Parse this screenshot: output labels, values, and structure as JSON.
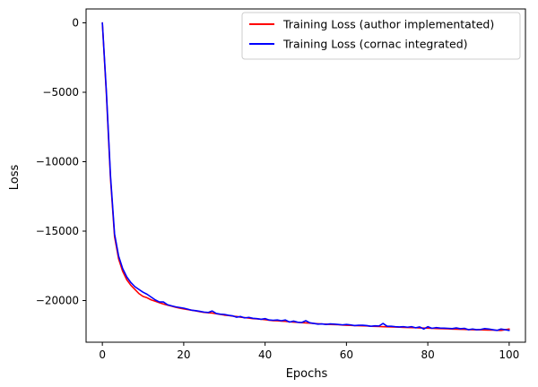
{
  "chart_data": {
    "type": "line",
    "title": "",
    "xlabel": "Epochs",
    "ylabel": "Loss",
    "xlim": [
      -4,
      104
    ],
    "ylim": [
      -23000,
      1000
    ],
    "xticks": [
      0,
      20,
      40,
      60,
      80,
      100
    ],
    "xtick_labels": [
      "0",
      "20",
      "40",
      "60",
      "80",
      "100"
    ],
    "yticks": [
      0,
      -5000,
      -10000,
      -15000,
      -20000
    ],
    "ytick_labels": [
      "0",
      "−5000",
      "−10000",
      "−15000",
      "−20000"
    ],
    "grid": false,
    "legend_position": "top-right",
    "x": [
      0,
      1,
      2,
      3,
      4,
      5,
      6,
      7,
      8,
      9,
      10,
      11,
      12,
      13,
      14,
      15,
      16,
      17,
      18,
      19,
      20,
      21,
      22,
      23,
      24,
      25,
      26,
      27,
      28,
      29,
      30,
      31,
      32,
      33,
      34,
      35,
      36,
      37,
      38,
      39,
      40,
      41,
      42,
      43,
      44,
      45,
      46,
      47,
      48,
      49,
      50,
      51,
      52,
      53,
      54,
      55,
      56,
      57,
      58,
      59,
      60,
      61,
      62,
      63,
      64,
      65,
      66,
      67,
      68,
      69,
      70,
      71,
      72,
      73,
      74,
      75,
      76,
      77,
      78,
      79,
      80,
      81,
      82,
      83,
      84,
      85,
      86,
      87,
      88,
      89,
      90,
      91,
      92,
      93,
      94,
      95,
      96,
      97,
      98,
      99,
      100
    ],
    "series": [
      {
        "name": "Training Loss (author implementated)",
        "color": "#ff0000",
        "values": [
          0,
          -5200,
          -11200,
          -15400,
          -17000,
          -17900,
          -18500,
          -18900,
          -19200,
          -19500,
          -19700,
          -19800,
          -19950,
          -20050,
          -20150,
          -20250,
          -20330,
          -20400,
          -20480,
          -20550,
          -20600,
          -20650,
          -20700,
          -20750,
          -20800,
          -20850,
          -20880,
          -20900,
          -20950,
          -21000,
          -21050,
          -21080,
          -21120,
          -21150,
          -21200,
          -21230,
          -21260,
          -21300,
          -21320,
          -21340,
          -21380,
          -21420,
          -21450,
          -21460,
          -21480,
          -21500,
          -21530,
          -21550,
          -21570,
          -21590,
          -21610,
          -21630,
          -21650,
          -21670,
          -21690,
          -21700,
          -21720,
          -21730,
          -21740,
          -21760,
          -21780,
          -21790,
          -21800,
          -21810,
          -21820,
          -21830,
          -21850,
          -21860,
          -21870,
          -21880,
          -21890,
          -21900,
          -21910,
          -21920,
          -21930,
          -21940,
          -21950,
          -21960,
          -21970,
          -21980,
          -21990,
          -22000,
          -22010,
          -22020,
          -22030,
          -22040,
          -22050,
          -22060,
          -22070,
          -22080,
          -22090,
          -22100,
          -22110,
          -22110,
          -22120,
          -22130,
          -22130,
          -22140,
          -22150,
          -22100,
          -22050
        ]
      },
      {
        "name": "Training Loss (cornac integrated)",
        "color": "#0000ff",
        "values": [
          0,
          -5000,
          -11000,
          -15200,
          -16800,
          -17700,
          -18300,
          -18700,
          -19000,
          -19200,
          -19400,
          -19550,
          -19750,
          -19950,
          -20100,
          -20100,
          -20300,
          -20380,
          -20450,
          -20500,
          -20550,
          -20620,
          -20700,
          -20730,
          -20780,
          -20830,
          -20860,
          -20750,
          -20930,
          -20980,
          -21000,
          -21060,
          -21100,
          -21200,
          -21150,
          -21250,
          -21210,
          -21280,
          -21300,
          -21350,
          -21300,
          -21400,
          -21420,
          -21400,
          -21450,
          -21400,
          -21550,
          -21480,
          -21560,
          -21580,
          -21450,
          -21600,
          -21650,
          -21700,
          -21680,
          -21720,
          -21680,
          -21700,
          -21720,
          -21750,
          -21720,
          -21750,
          -21800,
          -21780,
          -21780,
          -21800,
          -21850,
          -21820,
          -21830,
          -21650,
          -21850,
          -21850,
          -21880,
          -21900,
          -21880,
          -21920,
          -21880,
          -21960,
          -21900,
          -22050,
          -21880,
          -22000,
          -21950,
          -21980,
          -21990,
          -22000,
          -22020,
          -21970,
          -22030,
          -22000,
          -22100,
          -22050,
          -22100,
          -22080,
          -22020,
          -22050,
          -22100,
          -22150,
          -22050,
          -22100,
          -22150
        ]
      }
    ]
  }
}
